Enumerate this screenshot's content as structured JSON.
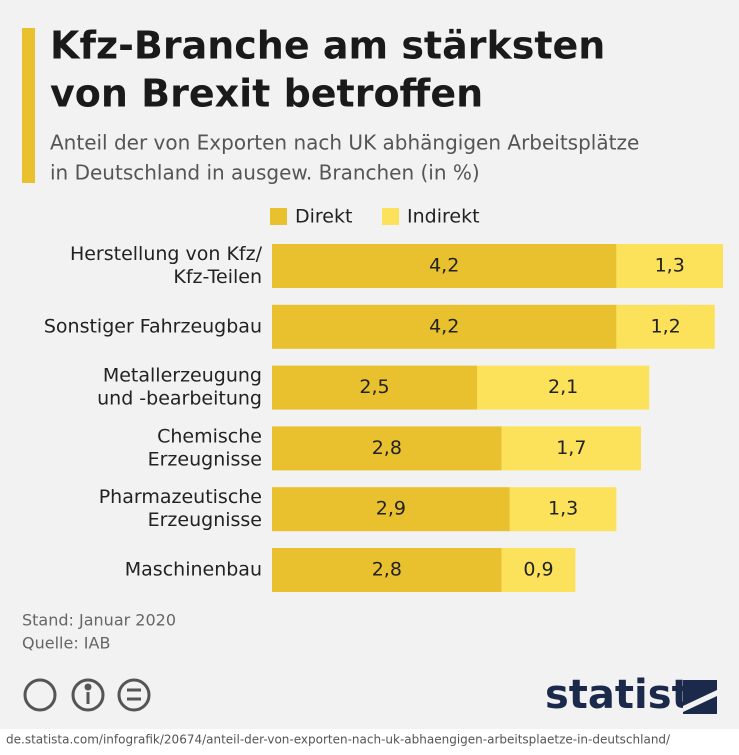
{
  "chart_data": {
    "type": "stacked-bar-horizontal",
    "title": [
      "Kfz-Branche am stärksten",
      "von Brexit betroffen"
    ],
    "subtitle": [
      "Anteil der von Exporten nach UK abhängigen Arbeitsplätze",
      "in Deutschland in ausgew. Branchen (in %)"
    ],
    "categories": [
      [
        "Herstellung von Kfz/",
        "Kfz-Teilen"
      ],
      [
        "Sonstiger Fahrzeugbau"
      ],
      [
        "Metallerzeugung",
        "und -bearbeitung"
      ],
      [
        "Chemische",
        "Erzeugnisse"
      ],
      [
        "Pharmazeutische",
        "Erzeugnisse"
      ],
      [
        "Maschinenbau"
      ]
    ],
    "series": [
      {
        "name": "Direkt",
        "color": "#e9c12e",
        "values": [
          4.2,
          4.2,
          2.5,
          2.8,
          2.9,
          2.8
        ],
        "value_labels": [
          "4,2",
          "4,2",
          "2,5",
          "2,8",
          "2,9",
          "2,8"
        ]
      },
      {
        "name": "Indirekt",
        "color": "#fbe25a",
        "values": [
          1.3,
          1.2,
          2.1,
          1.7,
          1.3,
          0.9
        ],
        "value_labels": [
          "1,3",
          "1,2",
          "2,1",
          "1,7",
          "1,3",
          "0,9"
        ]
      }
    ],
    "notes": [
      "Stand: Januar 2020",
      "Quelle: IAB"
    ],
    "brand": "statista",
    "url": "de.statista.com/infografik/20674/anteil-der-von-exporten-nach-uk-abhaengigen-arbeitsplaetze-in-deutschland/"
  }
}
